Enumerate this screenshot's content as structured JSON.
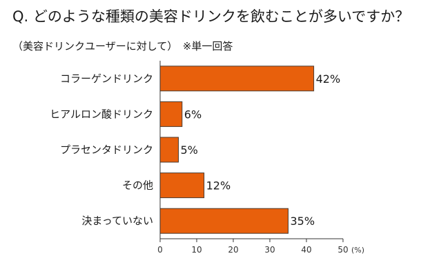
{
  "title": "Q. どのような種類の美容ドリンクを飲むことが多いですか？",
  "subtitle": "（美容ドリンクユーザーに対して）　※単一回答",
  "chart_data": {
    "type": "bar",
    "orientation": "horizontal",
    "categories": [
      "コラーゲンドリンク",
      "ヒアルロン酸ドリンク",
      "プラセンタドリンク",
      "その他",
      "決まっていない"
    ],
    "values": [
      42,
      6,
      5,
      12,
      35
    ],
    "value_labels": [
      "42%",
      "6%",
      "5%",
      "12%",
      "35%"
    ],
    "xlim": [
      0,
      50
    ],
    "xticks": [
      0,
      10,
      20,
      30,
      40,
      50
    ],
    "xtick_labels": [
      "0",
      "10",
      "20",
      "30",
      "40",
      "50"
    ],
    "unit_label": "(%)",
    "grid": false,
    "legend": "none",
    "bar_color": "#e8600c",
    "bar_stroke": "#4a3a30"
  }
}
